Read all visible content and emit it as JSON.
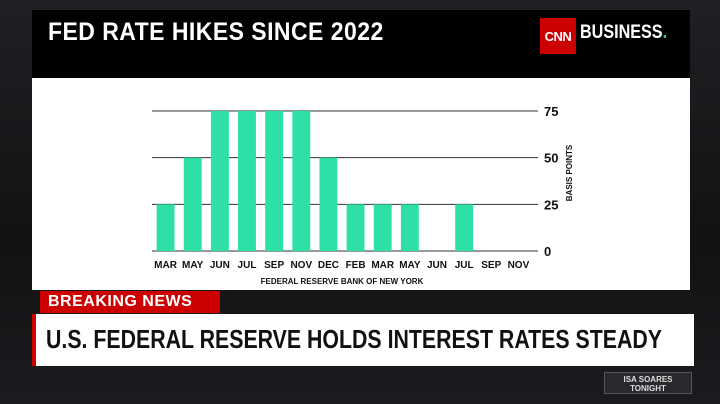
{
  "header": {
    "title": "FED RATE HIKES SINCE 2022",
    "logo_text": "CNN",
    "brand_label": "BUSINESS",
    "brand_dot": "."
  },
  "ticker": {
    "breaking_label": "BREAKING NEWS",
    "headline": "U.S. FEDERAL RESERVE HOLDS INTEREST RATES STEADY"
  },
  "promo": {
    "line1": "ISA SOARES",
    "line2": "TONIGHT"
  },
  "colors": {
    "bar": "#2ee0a8",
    "brand_red": "#cc0000",
    "grid": "#333333"
  },
  "chart_data": {
    "type": "bar",
    "title": "FED RATE HIKES SINCE 2022",
    "categories": [
      "MAR",
      "MAY",
      "JUN",
      "JUL",
      "SEP",
      "NOV",
      "DEC",
      "FEB",
      "MAR",
      "MAY",
      "JUN",
      "JUL",
      "SEP",
      "NOV"
    ],
    "values": [
      25,
      50,
      75,
      75,
      75,
      75,
      50,
      25,
      25,
      25,
      0,
      25,
      0,
      0
    ],
    "xlabel": "",
    "ylabel": "BASIS POINTS",
    "yticks": [
      0,
      25,
      50,
      75
    ],
    "ylim": [
      0,
      75
    ],
    "source": "FEDERAL RESERVE BANK OF NEW YORK",
    "grid": true,
    "y_axis_side": "right"
  }
}
